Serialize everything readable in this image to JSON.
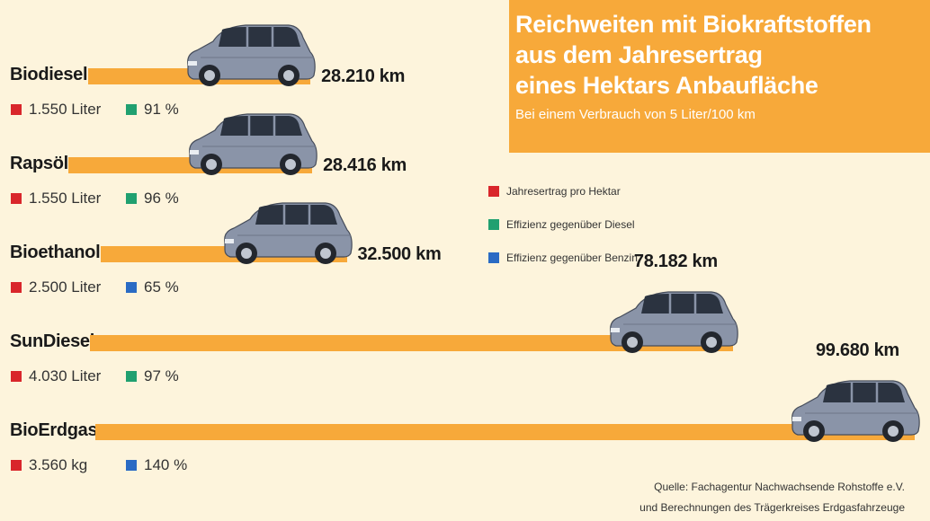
{
  "header": {
    "title_lines": [
      "Reichweiten mit Biokraftstoffen",
      "aus dem Jahresertrag",
      "eines Hektars Anbaufläche"
    ],
    "subtitle": "Bei einem Verbrauch von 5 Liter/100 km"
  },
  "legend": [
    {
      "label": "Jahresertrag pro Hektar",
      "color": "#d9262b"
    },
    {
      "label": "Effizienz gegenüber Diesel",
      "color": "#20a070"
    },
    {
      "label": "Effizienz gegenüber Benzin",
      "color": "#2a6bc4"
    }
  ],
  "chart_data": {
    "type": "bar",
    "orientation": "horizontal",
    "title": "Reichweiten mit Biokraftstoffen aus dem Jahresertrag eines Hektars Anbaufläche",
    "subtitle": "Bei einem Verbrauch von 5 Liter/100 km",
    "unit": "km",
    "categories": [
      "Biodiesel",
      "Rapsöl",
      "Bioethanol",
      "SunDiesel",
      "BioErdgas"
    ],
    "values": [
      28210,
      28416,
      32500,
      78182,
      99680
    ],
    "value_labels": [
      "28.210 km",
      "28.416 km",
      "32.500 km",
      "78.182 km",
      "99.680 km"
    ],
    "yield_per_hectare": [
      "1.550 Liter",
      "1.550 Liter",
      "2.500 Liter",
      "4.030 Liter",
      "3.560 kg"
    ],
    "efficiency": [
      "91 %",
      "96 %",
      "65 %",
      "97 %",
      "140 %"
    ],
    "efficiency_basis": [
      "diesel",
      "diesel",
      "benzin",
      "diesel",
      "benzin"
    ]
  },
  "source": {
    "line1": "Quelle: Fachagentur Nachwachsende Rohstoffe e.V.",
    "line2": "und Berechnungen des Trägerkreises Erdgasfahrzeuge"
  },
  "colors": {
    "bar": "#f7a93a",
    "background": "#fdf4dc",
    "yield": "#d9262b",
    "diesel": "#20a070",
    "benzin": "#2a6bc4"
  }
}
